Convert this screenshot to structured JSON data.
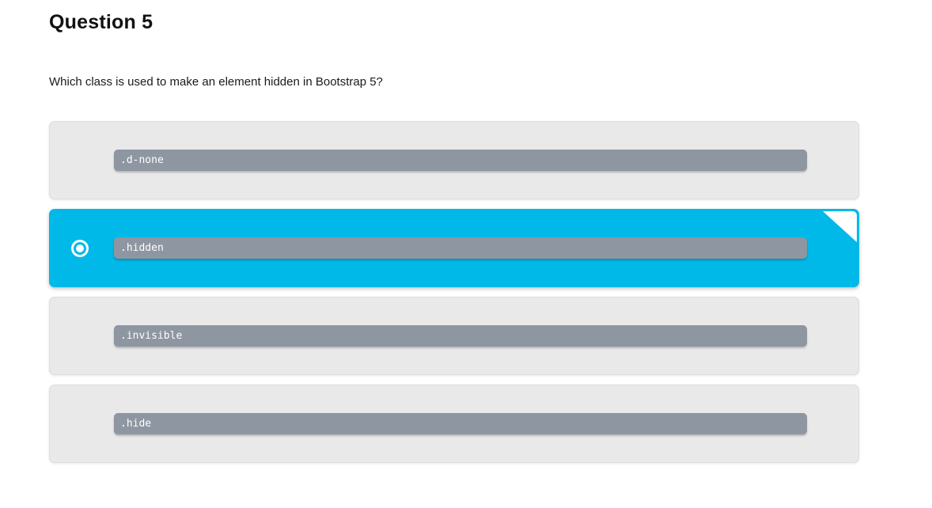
{
  "page": {
    "title": "Question 5",
    "question": "Which class is used to make an element hidden in Bootstrap 5?"
  },
  "options": [
    {
      "label": ".d-none",
      "selected": false
    },
    {
      "label": ".hidden",
      "selected": true
    },
    {
      "label": ".invisible",
      "selected": false
    },
    {
      "label": ".hide",
      "selected": false
    }
  ],
  "colors": {
    "page_bg": "#ffffff",
    "option_bg": "#e9e9e9",
    "selected_bg": "#00b9e8",
    "code_bar_bg": "#8e96a1",
    "code_text": "#ffffff",
    "heading_color": "#111111"
  }
}
